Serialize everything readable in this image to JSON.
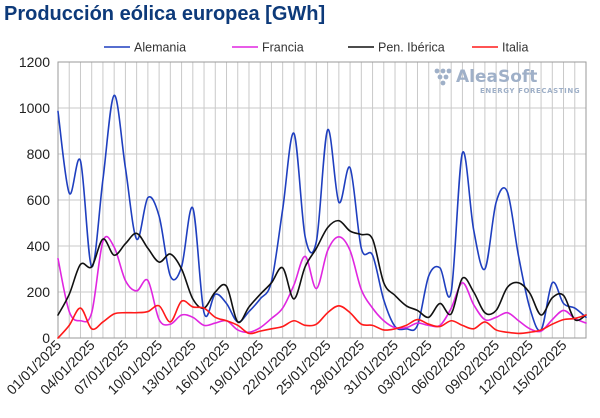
{
  "colors": {
    "title": "#0d3a7a",
    "grid": "#c9c9c9",
    "logo": "#9fb0c8"
  },
  "logo": {
    "name": "AleaSoft",
    "tagline": "ENERGY FORECASTING"
  },
  "chart_data": {
    "type": "line",
    "title": "Producción eólica europea [GWh]",
    "xlabel": "",
    "ylabel": "",
    "ylim": [
      0,
      1200
    ],
    "yticks": [
      0,
      200,
      400,
      600,
      800,
      1000,
      1200
    ],
    "x_start": "2025-01-01",
    "x_tick_labels": [
      "01/01/2025",
      "04/01/2025",
      "07/01/2025",
      "10/01/2025",
      "13/01/2025",
      "16/01/2025",
      "19/01/2025",
      "22/01/2025",
      "25/01/2025",
      "28/01/2025",
      "31/01/2025",
      "03/02/2025",
      "06/02/2025",
      "09/02/2025",
      "12/02/2025",
      "15/02/2025"
    ],
    "grid": true,
    "legend_position": "top",
    "x": [
      "01/01",
      "02/01",
      "03/01",
      "04/01",
      "05/01",
      "06/01",
      "07/01",
      "08/01",
      "09/01",
      "10/01",
      "11/01",
      "12/01",
      "13/01",
      "14/01",
      "15/01",
      "16/01",
      "17/01",
      "18/01",
      "19/01",
      "20/01",
      "21/01",
      "22/01",
      "23/01",
      "24/01",
      "25/01",
      "26/01",
      "27/01",
      "28/01",
      "29/01",
      "30/01",
      "31/01",
      "01/02",
      "02/02",
      "03/02",
      "04/02",
      "05/02",
      "06/02",
      "07/02",
      "08/02",
      "09/02",
      "10/02",
      "11/02",
      "12/02",
      "13/02",
      "14/02",
      "15/02",
      "16/02",
      "17/02"
    ],
    "series": [
      {
        "name": "Alemania",
        "color": "#1f3fbf",
        "values": [
          985,
          630,
          770,
          310,
          690,
          1055,
          740,
          430,
          610,
          530,
          270,
          310,
          565,
          110,
          190,
          150,
          70,
          115,
          170,
          245,
          560,
          890,
          440,
          420,
          905,
          590,
          740,
          390,
          360,
          165,
          50,
          40,
          55,
          270,
          305,
          200,
          805,
          470,
          300,
          590,
          635,
          355,
          130,
          35,
          240,
          150,
          130,
          90
        ]
      },
      {
        "name": "Francia",
        "color": "#e026e0",
        "values": [
          345,
          115,
          75,
          110,
          420,
          395,
          250,
          205,
          250,
          80,
          60,
          100,
          90,
          55,
          65,
          75,
          35,
          25,
          45,
          85,
          130,
          230,
          355,
          215,
          380,
          440,
          380,
          210,
          130,
          75,
          45,
          45,
          65,
          55,
          55,
          130,
          240,
          145,
          80,
          90,
          110,
          75,
          40,
          30,
          80,
          120,
          85,
          65
        ]
      },
      {
        "name": "Pen. Ibérica",
        "color": "#111111",
        "values": [
          100,
          190,
          320,
          310,
          430,
          360,
          410,
          455,
          390,
          330,
          365,
          300,
          170,
          130,
          200,
          225,
          70,
          135,
          190,
          240,
          305,
          170,
          310,
          390,
          480,
          510,
          465,
          450,
          430,
          240,
          185,
          140,
          120,
          90,
          150,
          105,
          260,
          200,
          110,
          120,
          220,
          240,
          195,
          100,
          175,
          185,
          80,
          100
        ]
      },
      {
        "name": "Italia",
        "color": "#ff1a1a",
        "values": [
          0,
          55,
          130,
          40,
          70,
          105,
          110,
          110,
          115,
          140,
          70,
          160,
          135,
          130,
          90,
          75,
          55,
          20,
          30,
          40,
          50,
          75,
          55,
          60,
          110,
          140,
          110,
          60,
          55,
          35,
          40,
          55,
          80,
          60,
          50,
          75,
          55,
          40,
          70,
          35,
          25,
          20,
          25,
          35,
          60,
          80,
          85,
          100
        ]
      }
    ]
  }
}
